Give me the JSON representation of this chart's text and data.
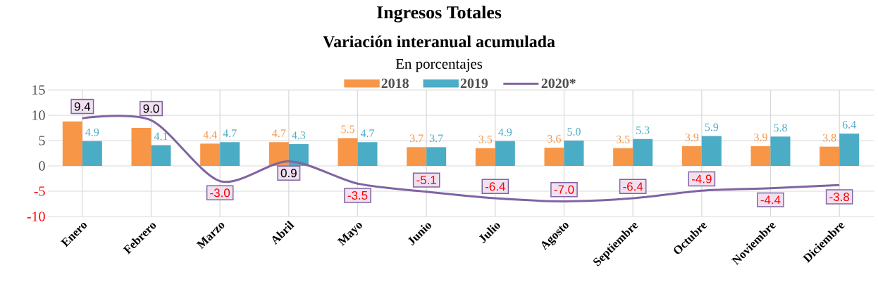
{
  "chart_data": {
    "type": "bar",
    "title": "Ingresos Totales",
    "subtitle": "Variación interanual acumulada",
    "annotations": [
      "En porcentajes"
    ],
    "categories": [
      "Enero",
      "Febrero",
      "Marzo",
      "Abril",
      "Mayo",
      "Junio",
      "Julio",
      "Agosto",
      "Septiembre",
      "Octubre",
      "Noviembre",
      "Diciembre"
    ],
    "series": [
      {
        "name": "2018",
        "color": "#f79646",
        "values": [
          8.8,
          7.5,
          4.4,
          4.7,
          5.5,
          3.7,
          3.5,
          3.6,
          3.5,
          3.9,
          3.9,
          3.8
        ],
        "value_labels": [
          null,
          null,
          "4.4",
          "4.7",
          "5.5",
          "3.7",
          "3.5",
          "3.6",
          "3.5",
          "3.9",
          "3.9",
          "3.8"
        ]
      },
      {
        "name": "2019",
        "color": "#4bacc6",
        "values": [
          4.9,
          4.1,
          4.7,
          4.3,
          4.7,
          3.7,
          4.9,
          5.0,
          5.3,
          5.9,
          5.8,
          6.4
        ],
        "value_labels": [
          "4.9",
          "4.1",
          "4.7",
          "4.3",
          "4.7",
          "3.7",
          "4.9",
          "5.0",
          "5.3",
          "5.9",
          "5.8",
          "6.4"
        ]
      },
      {
        "name": "2020*",
        "type": "line",
        "color": "#8064a2",
        "values": [
          9.4,
          9.0,
          -3.0,
          0.9,
          -3.5,
          -5.1,
          -6.4,
          -7.0,
          -6.4,
          -4.9,
          -4.4,
          -3.8
        ],
        "value_labels": [
          "9.4",
          "9.0",
          "-3.0",
          "0.9",
          "-3.5",
          "-5.1",
          "-6.4",
          "-7.0",
          "-6.4",
          "-4.9",
          "-4.4",
          "-3.8"
        ]
      }
    ],
    "ylim": [
      -10,
      15
    ],
    "yticks": [
      -10,
      -5,
      0,
      5,
      10,
      15
    ],
    "grid": true,
    "legend": "top"
  }
}
